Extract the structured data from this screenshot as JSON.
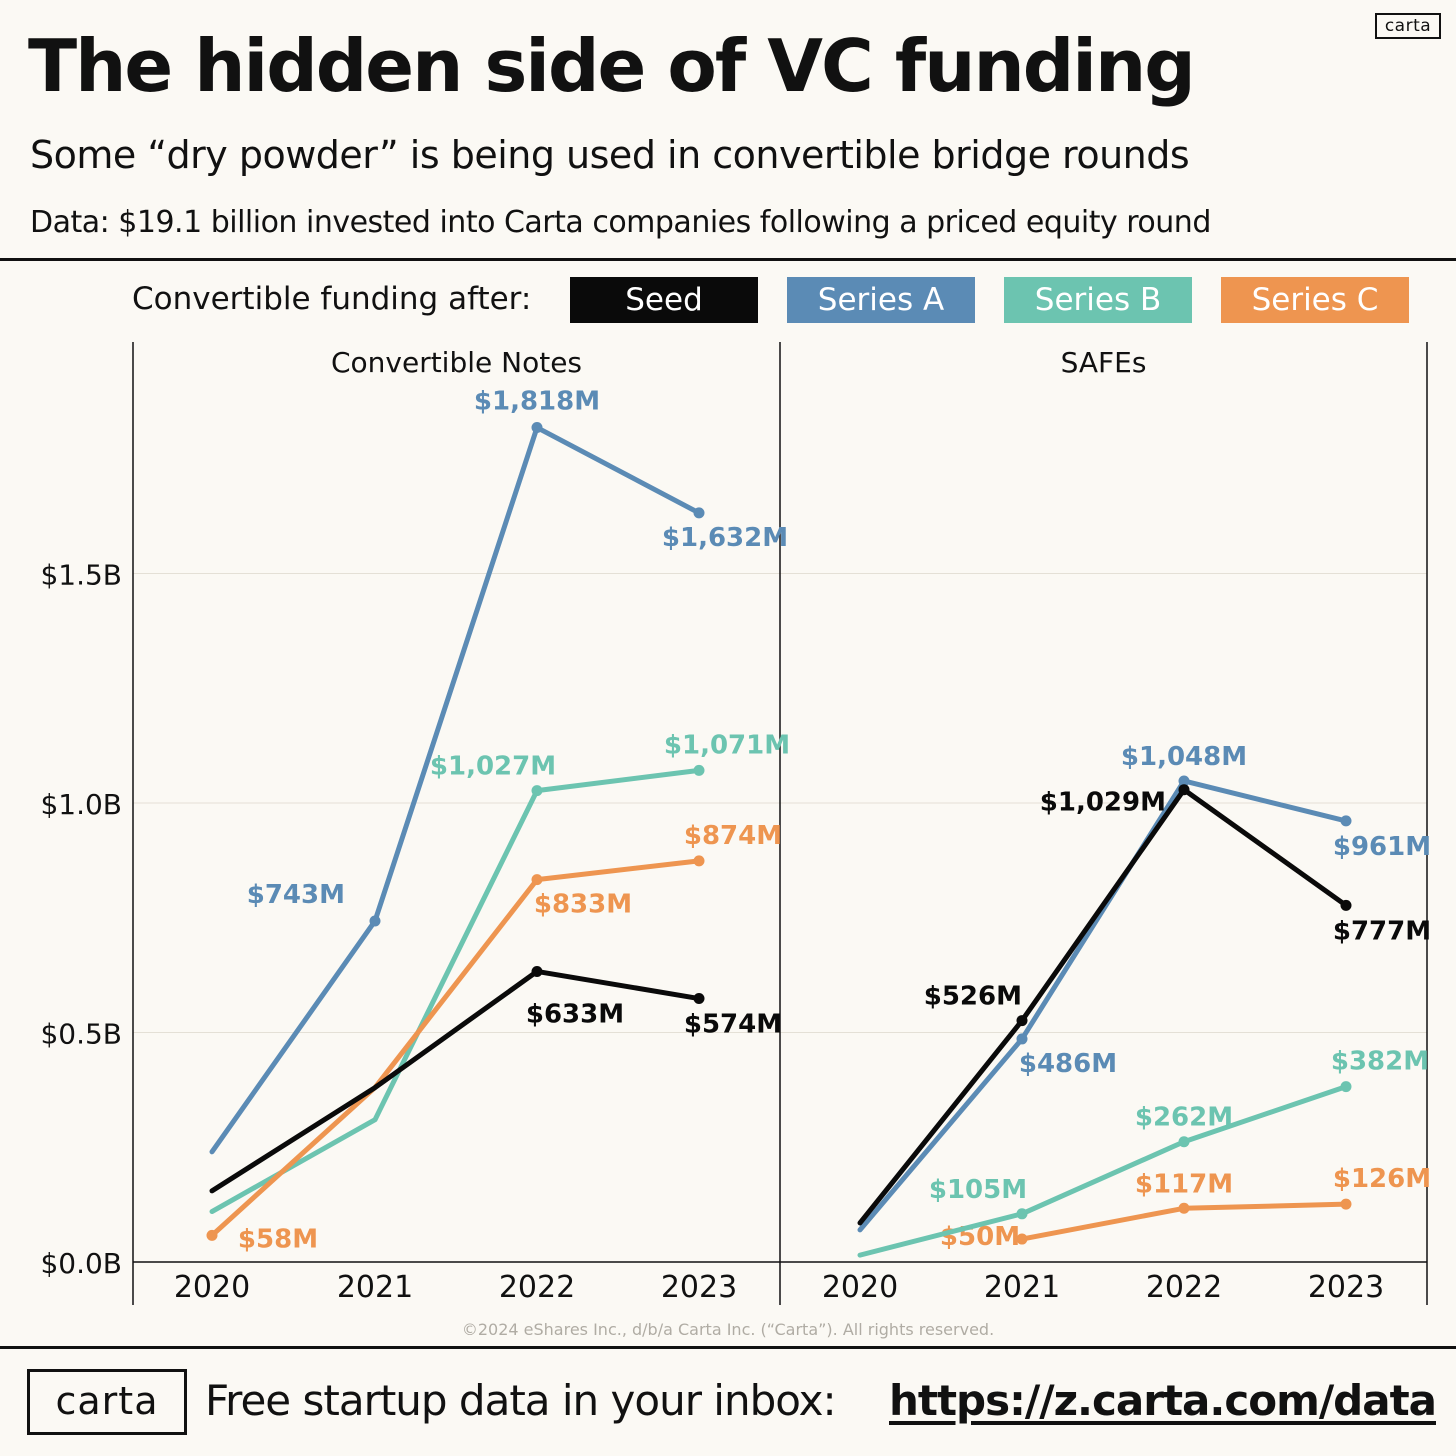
{
  "header": {
    "brand_tag": "carta",
    "title": "The hidden side of VC funding",
    "subtitle": "Some “dry powder” is being used in convertible bridge rounds",
    "dataline": "Data: $19.1 billion invested into Carta companies following a priced equity round"
  },
  "legend": {
    "label": "Convertible funding after:",
    "items": [
      "Seed",
      "Series A",
      "Series B",
      "Series C"
    ]
  },
  "colors": {
    "Seed": "#0a0a0a",
    "Series A": "#5b8bb5",
    "Series B": "#6cc4b0",
    "Series C": "#ee9550"
  },
  "chart_data": {
    "type": "line",
    "x": [
      "2020",
      "2021",
      "2022",
      "2023"
    ],
    "y_ticks": [
      "$0.0B",
      "$0.5B",
      "$1.0B",
      "$1.5B"
    ],
    "ylim": [
      0,
      1.9
    ],
    "grid": true,
    "panels": [
      {
        "title": "Convertible Notes",
        "series": [
          {
            "name": "Series A",
            "values": [
              0.24,
              0.743,
              1.818,
              1.632
            ],
            "labels": [
              "",
              "$743M",
              "$1,818M",
              "$1,632M"
            ]
          },
          {
            "name": "Series B",
            "values": [
              0.11,
              0.31,
              1.027,
              1.071
            ],
            "labels": [
              "",
              "",
              "$1,027M",
              "$1,071M"
            ]
          },
          {
            "name": "Series C",
            "values": [
              0.058,
              0.38,
              0.833,
              0.874
            ],
            "labels": [
              "$58M",
              "",
              "$833M",
              "$874M"
            ]
          },
          {
            "name": "Seed",
            "values": [
              0.155,
              0.38,
              0.633,
              0.574
            ],
            "labels": [
              "",
              "",
              "$633M",
              "$574M"
            ]
          }
        ]
      },
      {
        "title": "SAFEs",
        "series": [
          {
            "name": "Series C",
            "values": [
              null,
              0.05,
              0.117,
              0.126
            ],
            "labels": [
              "",
              "$50M",
              "$117M",
              "$126M"
            ]
          },
          {
            "name": "Series B",
            "values": [
              0.015,
              0.105,
              0.262,
              0.382
            ],
            "labels": [
              "",
              "$105M",
              "$262M",
              "$382M"
            ]
          },
          {
            "name": "Series A",
            "values": [
              0.07,
              0.486,
              1.048,
              0.961
            ],
            "labels": [
              "",
              "$486M",
              "$1,048M",
              "$961M"
            ]
          },
          {
            "name": "Seed",
            "values": [
              0.085,
              0.526,
              1.029,
              0.777
            ],
            "labels": [
              "",
              "$526M",
              "$1,029M",
              "$777M"
            ]
          }
        ]
      }
    ]
  },
  "copyright": "©2024 eShares Inc., d/b/a Carta Inc. (“Carta”). All rights reserved.",
  "footer": {
    "logo": "carta",
    "text": "Free startup data in your inbox:",
    "link": "https://z.carta.com/data"
  }
}
